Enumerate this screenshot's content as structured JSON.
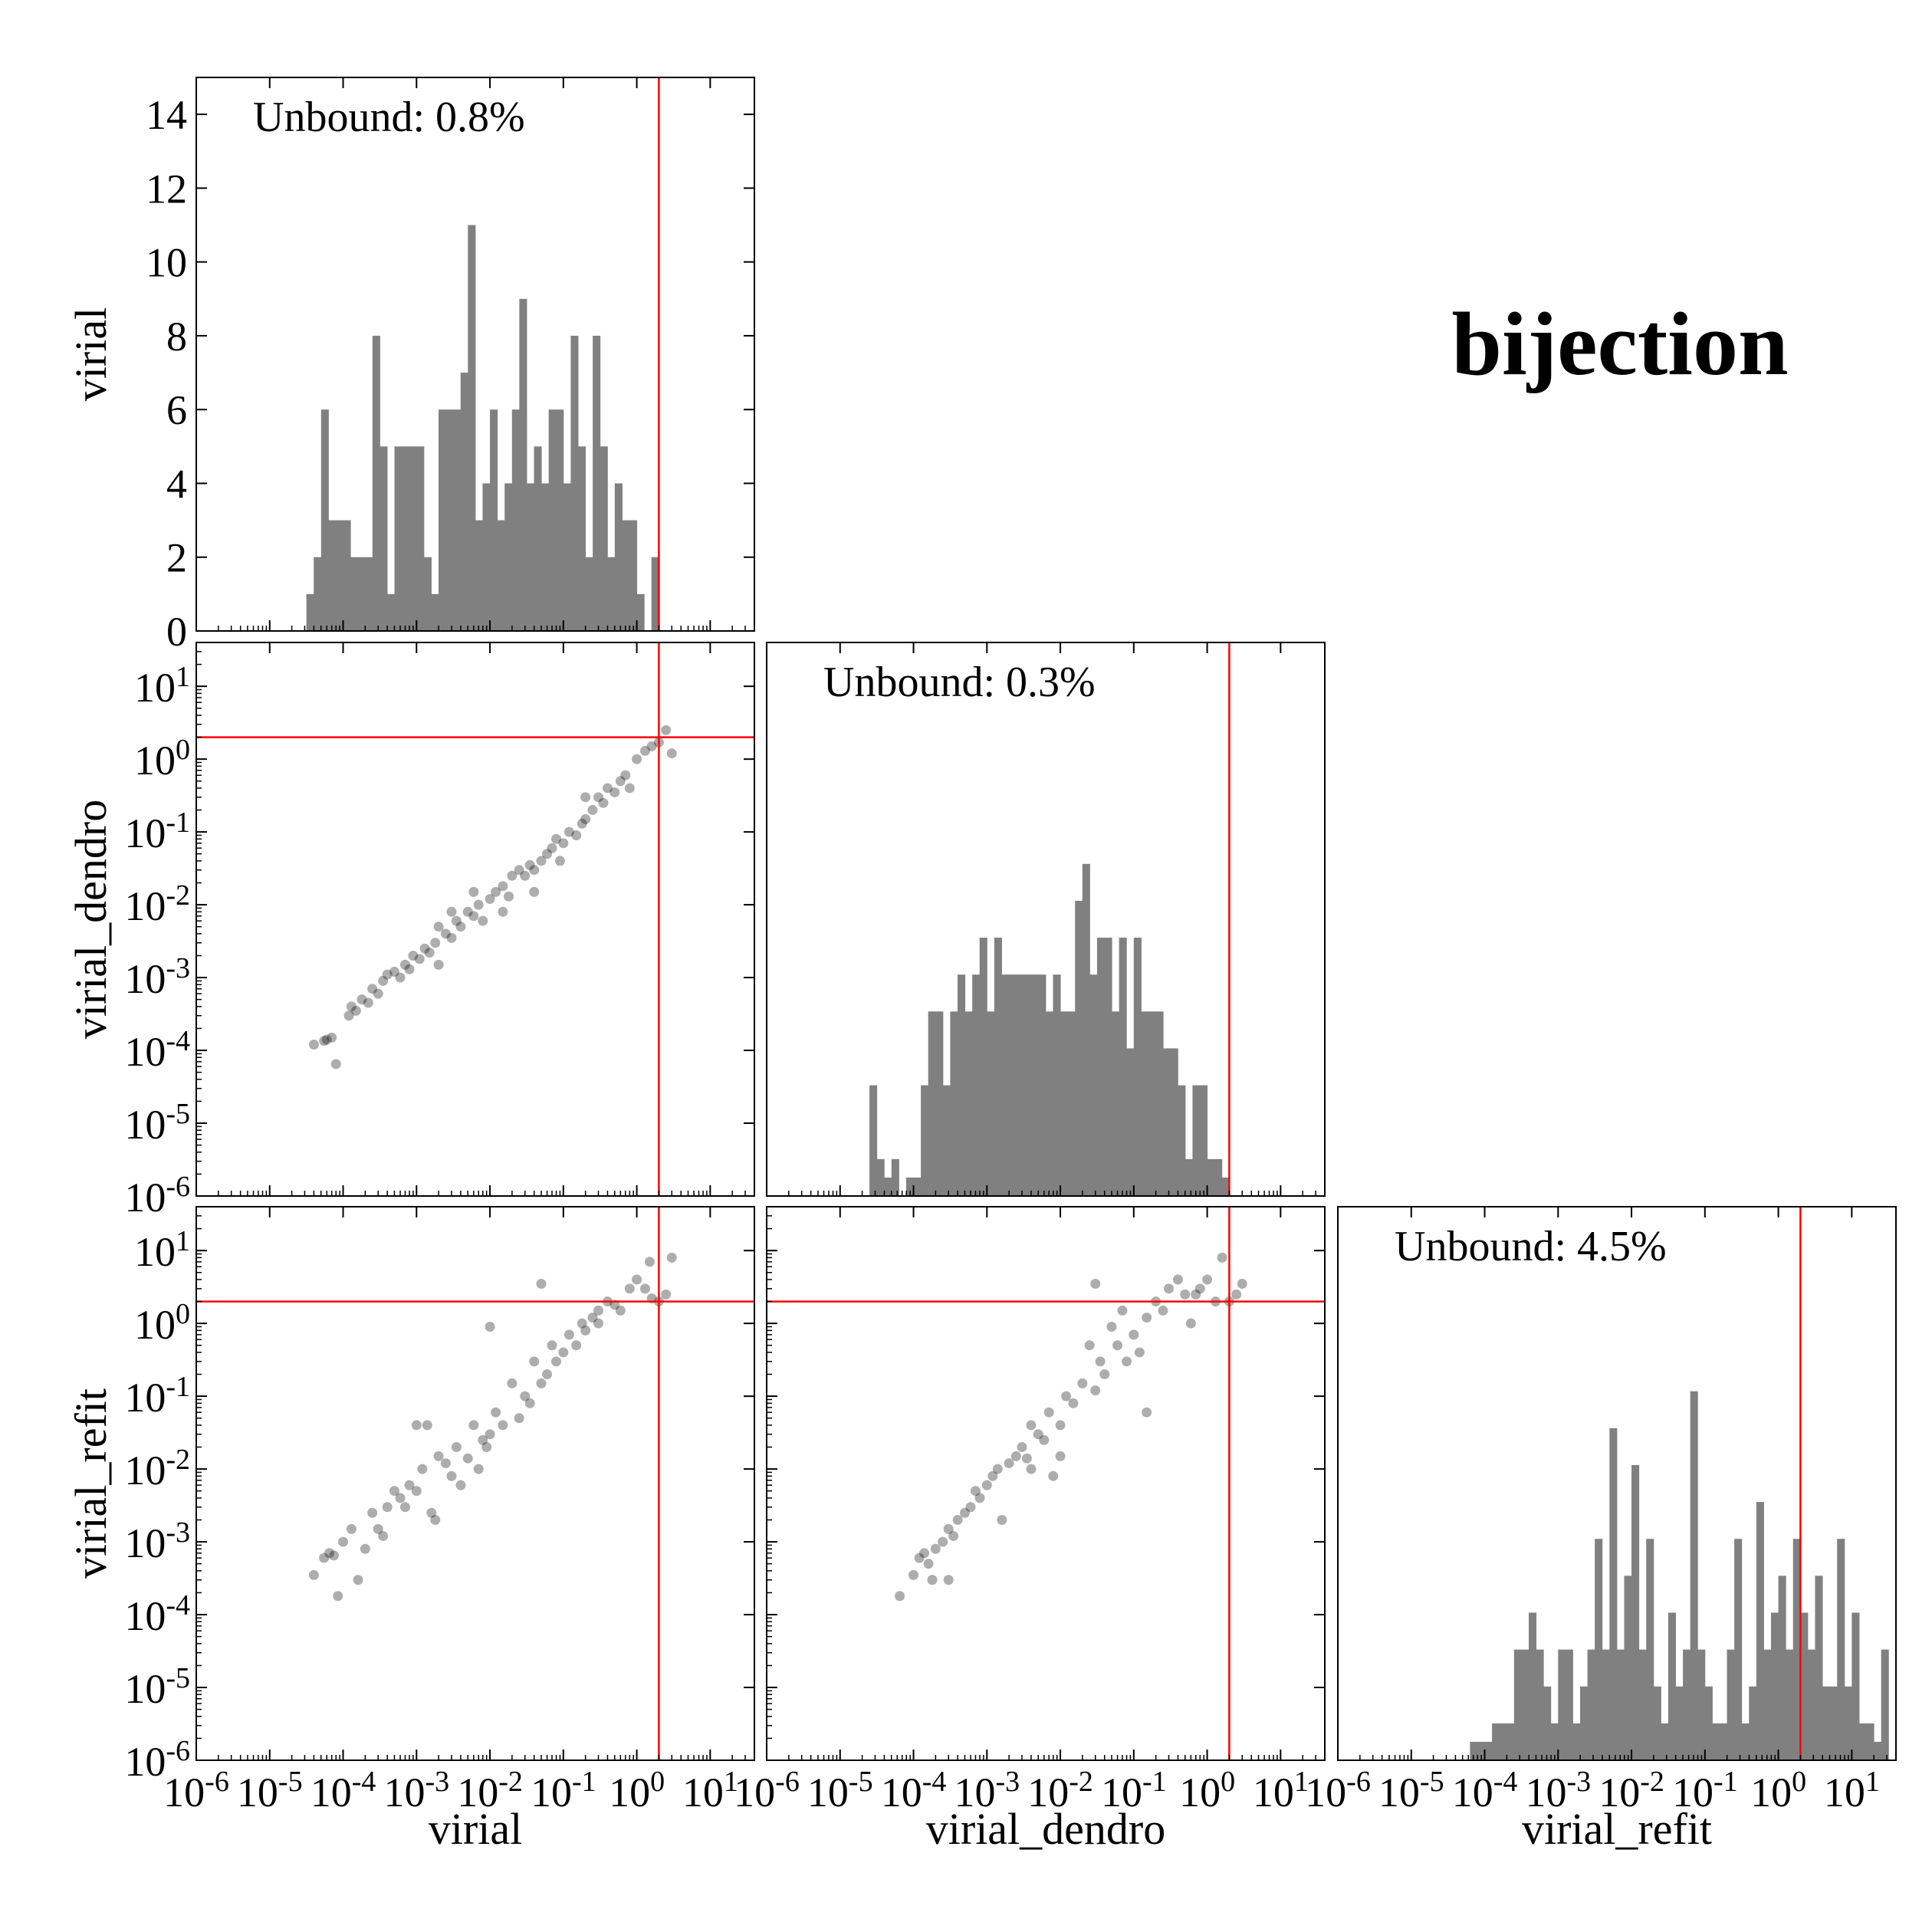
{
  "figure_title": "bijection",
  "colors": {
    "bar": "#808080",
    "point": "#000000",
    "threshold": "#ff0000",
    "frame": "#000000"
  },
  "variables": [
    "virial",
    "virial_dendro",
    "virial_refit"
  ],
  "axis_labels": {
    "virial": "virial",
    "virial_dendro": "virial_dendro",
    "virial_refit": "virial_refit"
  },
  "annotations": {
    "virial": "Unbound: 0.8%",
    "virial_dendro": "Unbound: 0.3%",
    "virial_refit": "Unbound: 4.5%"
  },
  "log_ticks": [
    "-6",
    "-5",
    "-4",
    "-3",
    "-2",
    "-1",
    "0",
    "1"
  ],
  "log_tick_base": "10",
  "count_ticks": [
    "0",
    "2",
    "4",
    "6",
    "8",
    "10",
    "12",
    "14"
  ],
  "chart_data": [
    {
      "type": "bar",
      "panel": "virial",
      "xlabel": "",
      "ylabel": "virial",
      "x_scale": "log",
      "xlim": [
        1e-06,
        40
      ],
      "ylim": [
        0,
        15
      ],
      "threshold_x": 2.0,
      "annotation": "Unbound: 0.8%",
      "bin_log_start": -4.5,
      "bin_log_width": 0.1,
      "counts": [
        1,
        2,
        6,
        3,
        3,
        3,
        2,
        2,
        2,
        8,
        5,
        1,
        5,
        5,
        5,
        5,
        2,
        1,
        6,
        6,
        6,
        7,
        11,
        3,
        4,
        6,
        3,
        4,
        6,
        9,
        4,
        5,
        4,
        6,
        6,
        4,
        8,
        5,
        2,
        8,
        5,
        2,
        4,
        3,
        3,
        1,
        0,
        2
      ]
    },
    {
      "type": "scatter",
      "panel": "virial_dendro vs virial",
      "xlabel": "",
      "ylabel": "virial_dendro",
      "x_scale": "log",
      "y_scale": "log",
      "xlim": [
        1e-06,
        40
      ],
      "ylim": [
        1e-06,
        40
      ],
      "threshold_x": 2.0,
      "threshold_y": 2.0,
      "points": [
        [
          4e-05,
          0.00012
        ],
        [
          5.5e-05,
          0.000135
        ],
        [
          6e-05,
          0.00014
        ],
        [
          7e-05,
          0.00015
        ],
        [
          8e-05,
          6.5e-05
        ],
        [
          0.00012,
          0.0003
        ],
        [
          0.00013,
          0.0004
        ],
        [
          0.00015,
          0.00035
        ],
        [
          0.00018,
          0.0005
        ],
        [
          0.00022,
          0.00045
        ],
        [
          0.00025,
          0.0007
        ],
        [
          0.0003,
          0.0006
        ],
        [
          0.00035,
          0.0009
        ],
        [
          0.0004,
          0.0011
        ],
        [
          0.0005,
          0.0012
        ],
        [
          0.0006,
          0.001
        ],
        [
          0.0007,
          0.0015
        ],
        [
          0.0008,
          0.0013
        ],
        [
          0.0009,
          0.002
        ],
        [
          0.0011,
          0.0018
        ],
        [
          0.0013,
          0.0025
        ],
        [
          0.0015,
          0.0022
        ],
        [
          0.0018,
          0.003
        ],
        [
          0.002,
          0.005
        ],
        [
          0.0025,
          0.004
        ],
        [
          0.003,
          0.0035
        ],
        [
          0.0035,
          0.006
        ],
        [
          0.004,
          0.005
        ],
        [
          0.005,
          0.008
        ],
        [
          0.006,
          0.007
        ],
        [
          0.007,
          0.01
        ],
        [
          0.008,
          0.006
        ],
        [
          0.01,
          0.012
        ],
        [
          0.012,
          0.015
        ],
        [
          0.015,
          0.018
        ],
        [
          0.018,
          0.013
        ],
        [
          0.02,
          0.025
        ],
        [
          0.025,
          0.03
        ],
        [
          0.03,
          0.025
        ],
        [
          0.035,
          0.035
        ],
        [
          0.04,
          0.03
        ],
        [
          0.05,
          0.04
        ],
        [
          0.06,
          0.05
        ],
        [
          0.07,
          0.06
        ],
        [
          0.08,
          0.08
        ],
        [
          0.1,
          0.07
        ],
        [
          0.12,
          0.1
        ],
        [
          0.15,
          0.09
        ],
        [
          0.18,
          0.13
        ],
        [
          0.2,
          0.15
        ],
        [
          0.25,
          0.2
        ],
        [
          0.3,
          0.3
        ],
        [
          0.35,
          0.25
        ],
        [
          0.4,
          0.4
        ],
        [
          0.5,
          0.35
        ],
        [
          0.6,
          0.5
        ],
        [
          0.8,
          0.4
        ],
        [
          1.0,
          1.0
        ],
        [
          1.3,
          1.3
        ],
        [
          1.6,
          1.5
        ],
        [
          2.0,
          1.7
        ],
        [
          2.5,
          2.5
        ],
        [
          3.0,
          1.2
        ],
        [
          0.015,
          0.008
        ],
        [
          0.003,
          0.008
        ],
        [
          0.002,
          0.0015
        ],
        [
          0.006,
          0.015
        ],
        [
          0.04,
          0.015
        ],
        [
          0.09,
          0.04
        ],
        [
          0.2,
          0.3
        ],
        [
          0.7,
          0.6
        ]
      ]
    },
    {
      "type": "bar",
      "panel": "virial_dendro",
      "xlabel": "",
      "ylabel": "",
      "x_scale": "log",
      "xlim": [
        1e-06,
        40
      ],
      "ylim": [
        0,
        15
      ],
      "threshold_x": 2.0,
      "annotation": "Unbound: 0.3%",
      "bin_log_start": -4.6,
      "bin_log_width": 0.1,
      "counts": [
        3,
        1,
        0.5,
        1,
        0,
        0.5,
        0.5,
        3,
        5,
        5,
        3,
        5,
        6,
        5,
        6,
        7,
        5,
        7,
        6,
        6,
        6,
        6,
        6,
        6,
        5,
        6,
        5,
        5,
        8,
        9,
        6,
        7,
        7,
        5,
        7,
        4,
        7,
        5,
        5,
        5,
        4,
        4,
        3,
        1,
        3,
        3,
        1,
        1,
        0.5
      ]
    },
    {
      "type": "scatter",
      "panel": "virial_refit vs virial",
      "xlabel": "virial",
      "ylabel": "virial_refit",
      "x_scale": "log",
      "y_scale": "log",
      "xlim": [
        1e-06,
        40
      ],
      "ylim": [
        1e-06,
        40
      ],
      "threshold_x": 2.0,
      "threshold_y": 2.0,
      "points": [
        [
          4e-05,
          0.00035
        ],
        [
          5.5e-05,
          0.0006
        ],
        [
          6.5e-05,
          0.0007
        ],
        [
          7.5e-05,
          0.00065
        ],
        [
          8.5e-05,
          0.00018
        ],
        [
          0.0001,
          0.001
        ],
        [
          0.00013,
          0.0015
        ],
        [
          0.00016,
          0.0003
        ],
        [
          0.0002,
          0.0008
        ],
        [
          0.00025,
          0.0025
        ],
        [
          0.0003,
          0.0015
        ],
        [
          0.00035,
          0.0012
        ],
        [
          0.0004,
          0.003
        ],
        [
          0.0005,
          0.005
        ],
        [
          0.0006,
          0.004
        ],
        [
          0.0007,
          0.003
        ],
        [
          0.0008,
          0.006
        ],
        [
          0.001,
          0.005
        ],
        [
          0.0012,
          0.01
        ],
        [
          0.0014,
          0.04
        ],
        [
          0.0016,
          0.0025
        ],
        [
          0.002,
          0.015
        ],
        [
          0.0025,
          0.012
        ],
        [
          0.003,
          0.008
        ],
        [
          0.0035,
          0.02
        ],
        [
          0.004,
          0.006
        ],
        [
          0.005,
          0.014
        ],
        [
          0.006,
          0.04
        ],
        [
          0.007,
          0.01
        ],
        [
          0.008,
          0.025
        ],
        [
          0.01,
          0.03
        ],
        [
          0.012,
          0.06
        ],
        [
          0.015,
          0.04
        ],
        [
          0.02,
          0.15
        ],
        [
          0.025,
          0.05
        ],
        [
          0.03,
          0.1
        ],
        [
          0.035,
          0.08
        ],
        [
          0.04,
          0.3
        ],
        [
          0.05,
          0.15
        ],
        [
          0.06,
          0.2
        ],
        [
          0.07,
          0.5
        ],
        [
          0.08,
          0.3
        ],
        [
          0.1,
          0.4
        ],
        [
          0.12,
          0.7
        ],
        [
          0.15,
          0.5
        ],
        [
          0.18,
          1.0
        ],
        [
          0.2,
          0.8
        ],
        [
          0.25,
          1.2
        ],
        [
          0.3,
          1.5
        ],
        [
          0.4,
          2.0
        ],
        [
          0.5,
          1.8
        ],
        [
          0.6,
          1.5
        ],
        [
          0.8,
          3.0
        ],
        [
          1.0,
          4.0
        ],
        [
          1.3,
          3.0
        ],
        [
          1.6,
          2.2
        ],
        [
          2.0,
          2.0
        ],
        [
          2.5,
          2.5
        ],
        [
          3.0,
          8.0
        ],
        [
          1.5,
          7.0
        ],
        [
          0.01,
          0.9
        ],
        [
          0.05,
          3.5
        ],
        [
          0.001,
          0.04
        ],
        [
          0.0018,
          0.002
        ],
        [
          0.009,
          0.02
        ],
        [
          0.3,
          1.0
        ]
      ]
    },
    {
      "type": "scatter",
      "panel": "virial_refit vs virial_dendro",
      "xlabel": "virial_dendro",
      "ylabel": "",
      "x_scale": "log",
      "y_scale": "log",
      "xlim": [
        1e-06,
        40
      ],
      "ylim": [
        1e-06,
        40
      ],
      "threshold_x": 2.0,
      "threshold_y": 2.0,
      "points": [
        [
          6.5e-05,
          0.00018
        ],
        [
          0.0001,
          0.00035
        ],
        [
          0.00012,
          0.0006
        ],
        [
          0.00014,
          0.0007
        ],
        [
          0.00016,
          0.0005
        ],
        [
          0.00018,
          0.0003
        ],
        [
          0.0002,
          0.0008
        ],
        [
          0.00025,
          0.001
        ],
        [
          0.0003,
          0.0015
        ],
        [
          0.00035,
          0.0012
        ],
        [
          0.0004,
          0.002
        ],
        [
          0.0005,
          0.0025
        ],
        [
          0.0006,
          0.003
        ],
        [
          0.0007,
          0.005
        ],
        [
          0.0008,
          0.004
        ],
        [
          0.001,
          0.006
        ],
        [
          0.0012,
          0.008
        ],
        [
          0.0014,
          0.01
        ],
        [
          0.0016,
          0.002
        ],
        [
          0.002,
          0.012
        ],
        [
          0.0025,
          0.015
        ],
        [
          0.003,
          0.02
        ],
        [
          0.0035,
          0.014
        ],
        [
          0.004,
          0.04
        ],
        [
          0.005,
          0.03
        ],
        [
          0.006,
          0.025
        ],
        [
          0.007,
          0.06
        ],
        [
          0.008,
          0.008
        ],
        [
          0.01,
          0.04
        ],
        [
          0.012,
          0.1
        ],
        [
          0.015,
          0.08
        ],
        [
          0.02,
          0.15
        ],
        [
          0.025,
          0.5
        ],
        [
          0.03,
          0.12
        ],
        [
          0.035,
          0.3
        ],
        [
          0.04,
          0.2
        ],
        [
          0.05,
          0.9
        ],
        [
          0.06,
          0.5
        ],
        [
          0.07,
          1.5
        ],
        [
          0.08,
          0.3
        ],
        [
          0.1,
          0.7
        ],
        [
          0.12,
          0.4
        ],
        [
          0.15,
          1.2
        ],
        [
          0.2,
          2.0
        ],
        [
          0.25,
          1.5
        ],
        [
          0.3,
          3.0
        ],
        [
          0.4,
          4.0
        ],
        [
          0.5,
          2.5
        ],
        [
          0.6,
          1.0
        ],
        [
          0.8,
          3.0
        ],
        [
          1.0,
          4.0
        ],
        [
          1.3,
          2.0
        ],
        [
          1.6,
          8.0
        ],
        [
          2.0,
          2.0
        ],
        [
          2.5,
          2.5
        ],
        [
          3.0,
          3.5
        ],
        [
          0.03,
          3.5
        ],
        [
          0.01,
          0.015
        ],
        [
          0.004,
          0.01
        ],
        [
          0.0003,
          0.0003
        ],
        [
          0.15,
          0.06
        ],
        [
          0.7,
          2.5
        ]
      ]
    },
    {
      "type": "bar",
      "panel": "virial_refit",
      "xlabel": "virial_refit",
      "ylabel": "",
      "x_scale": "log",
      "xlim": [
        1e-06,
        40
      ],
      "ylim": [
        0,
        15
      ],
      "threshold_x": 2.0,
      "annotation": "Unbound: 4.5%",
      "bin_log_start": -4.2,
      "bin_log_width": 0.1,
      "counts": [
        0.5,
        0.5,
        0.5,
        1,
        1,
        1,
        3,
        3,
        4,
        3,
        2,
        1,
        3,
        3,
        1,
        2,
        3,
        6,
        3,
        9,
        3,
        5,
        8,
        3,
        6,
        2,
        1,
        4,
        2,
        3,
        10,
        3,
        2,
        1,
        1,
        3,
        6,
        1,
        2,
        7,
        3,
        4,
        5,
        3,
        6,
        4,
        3,
        5,
        2,
        2,
        6,
        2,
        4,
        1,
        1,
        0.5,
        3
      ]
    }
  ]
}
